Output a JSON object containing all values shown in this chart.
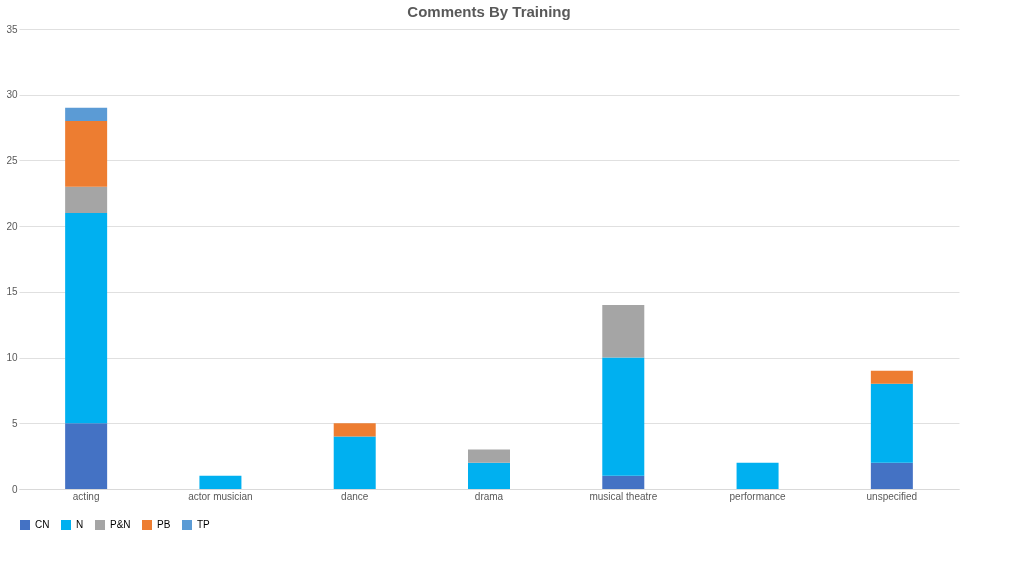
{
  "chart_data": {
    "type": "bar",
    "title": "Comments By Training",
    "stacked": true,
    "categories": [
      "acting",
      "actor musician",
      "dance",
      "drama",
      "musical theatre",
      "performance",
      "unspecified"
    ],
    "series": [
      {
        "name": "CN",
        "color": "#4472c4",
        "values": [
          5,
          null,
          null,
          null,
          1,
          null,
          2
        ]
      },
      {
        "name": "N",
        "color": "#00b0f0",
        "values": [
          16,
          1,
          4,
          2,
          9,
          2,
          6
        ]
      },
      {
        "name": "P&N",
        "color": "#a5a5a5",
        "values": [
          2,
          null,
          null,
          1,
          4,
          null,
          null
        ]
      },
      {
        "name": "PB",
        "color": "#ed7d31",
        "values": [
          5,
          null,
          1,
          null,
          null,
          null,
          1
        ]
      },
      {
        "name": "TP",
        "color": "#5b9bd5",
        "values": [
          1,
          null,
          null,
          null,
          null,
          null,
          null
        ]
      }
    ],
    "ylim": [
      0,
      35
    ],
    "yticks": [
      0,
      5,
      10,
      15,
      20,
      25,
      30,
      35
    ],
    "grid": "y",
    "legend": "bottom"
  }
}
